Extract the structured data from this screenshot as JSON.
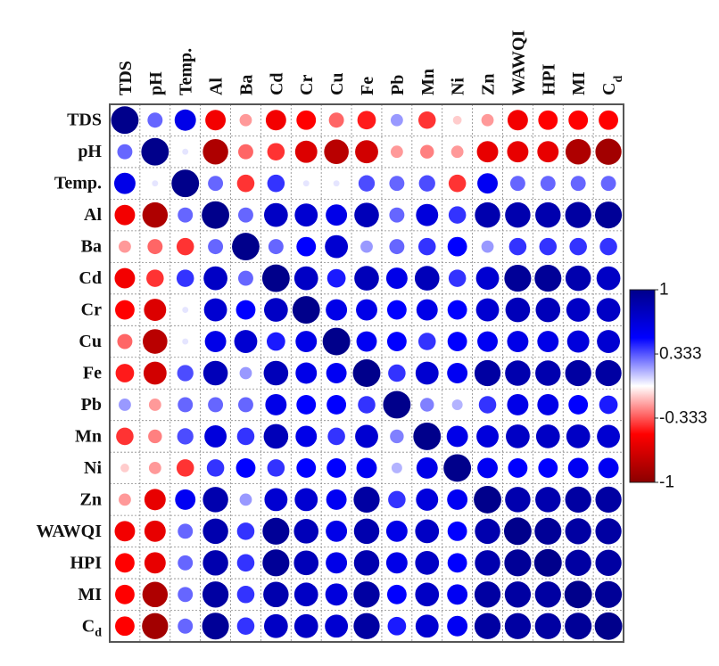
{
  "chart_data": {
    "type": "heatmap",
    "style": "circle-correlogram",
    "variables": [
      "TDS",
      "pH",
      "Temp.",
      "Al",
      "Ba",
      "Cd",
      "Cr",
      "Cu",
      "Fe",
      "Pb",
      "Mn",
      "Ni",
      "Zn",
      "WAWQI",
      "HPI",
      "MI",
      "Cd"
    ],
    "variable_subscripts": [
      null,
      null,
      null,
      null,
      null,
      null,
      null,
      null,
      null,
      null,
      null,
      null,
      null,
      null,
      null,
      null,
      "d"
    ],
    "matrix": [
      [
        1,
        0.3,
        0.6,
        -0.55,
        -0.2,
        -0.55,
        -0.5,
        -0.3,
        -0.45,
        0.2,
        -0.4,
        -0.1,
        -0.2,
        -0.55,
        -0.5,
        -0.5,
        -0.5
      ],
      [
        0.3,
        1,
        0.05,
        -0.85,
        -0.3,
        -0.4,
        -0.65,
        -0.8,
        -0.7,
        -0.2,
        -0.25,
        -0.2,
        -0.6,
        -0.6,
        -0.6,
        -0.85,
        -0.9
      ],
      [
        0.6,
        0.05,
        1,
        0.3,
        -0.4,
        0.4,
        0.05,
        0.05,
        0.35,
        0.3,
        0.35,
        -0.4,
        0.55,
        0.3,
        0.3,
        0.3,
        0.3
      ],
      [
        -0.55,
        -0.85,
        0.3,
        1,
        0.3,
        0.75,
        0.7,
        0.6,
        0.8,
        0.3,
        0.65,
        0.4,
        0.85,
        0.85,
        0.85,
        0.9,
        0.95
      ],
      [
        -0.2,
        -0.3,
        -0.4,
        0.3,
        1,
        0.3,
        0.5,
        0.7,
        0.2,
        0.3,
        0.4,
        0.5,
        0.2,
        0.4,
        0.4,
        0.4,
        0.4
      ],
      [
        -0.55,
        -0.4,
        0.4,
        0.75,
        0.3,
        1,
        0.75,
        0.45,
        0.8,
        0.6,
        0.8,
        0.4,
        0.7,
        0.95,
        0.95,
        0.85,
        0.75
      ],
      [
        -0.5,
        -0.65,
        0.05,
        0.7,
        0.5,
        0.75,
        1,
        0.6,
        0.6,
        0.5,
        0.6,
        0.5,
        0.7,
        0.8,
        0.8,
        0.75,
        0.75
      ],
      [
        -0.3,
        -0.8,
        0.05,
        0.6,
        0.7,
        0.45,
        0.6,
        1,
        0.55,
        0.5,
        0.4,
        0.5,
        0.55,
        0.6,
        0.6,
        0.65,
        0.7
      ],
      [
        -0.45,
        -0.7,
        0.35,
        0.8,
        0.2,
        0.8,
        0.6,
        0.55,
        1,
        0.4,
        0.7,
        0.55,
        0.9,
        0.85,
        0.85,
        0.9,
        0.9
      ],
      [
        0.2,
        -0.2,
        0.3,
        0.3,
        0.3,
        0.6,
        0.5,
        0.5,
        0.4,
        1,
        0.25,
        0.15,
        0.4,
        0.6,
        0.6,
        0.5,
        0.45
      ],
      [
        -0.4,
        -0.25,
        0.35,
        0.65,
        0.4,
        0.8,
        0.6,
        0.4,
        0.7,
        0.25,
        1,
        0.6,
        0.65,
        0.75,
        0.75,
        0.75,
        0.7
      ],
      [
        -0.1,
        -0.2,
        -0.4,
        0.4,
        0.5,
        0.4,
        0.5,
        0.5,
        0.55,
        0.15,
        0.6,
        1,
        0.55,
        0.5,
        0.5,
        0.55,
        0.55
      ],
      [
        -0.2,
        -0.6,
        0.55,
        0.85,
        0.2,
        0.7,
        0.7,
        0.55,
        0.9,
        0.4,
        0.65,
        0.55,
        1,
        0.85,
        0.85,
        0.9,
        0.9
      ],
      [
        -0.55,
        -0.6,
        0.3,
        0.85,
        0.4,
        0.95,
        0.8,
        0.6,
        0.85,
        0.6,
        0.75,
        0.5,
        0.85,
        1,
        0.95,
        0.9,
        0.9
      ],
      [
        -0.5,
        -0.6,
        0.3,
        0.85,
        0.4,
        0.95,
        0.8,
        0.6,
        0.85,
        0.6,
        0.75,
        0.5,
        0.85,
        0.95,
        1,
        0.9,
        0.9
      ],
      [
        -0.5,
        -0.85,
        0.3,
        0.9,
        0.4,
        0.85,
        0.75,
        0.65,
        0.9,
        0.5,
        0.75,
        0.55,
        0.9,
        0.9,
        0.9,
        1,
        0.95
      ],
      [
        -0.5,
        -0.9,
        0.3,
        0.95,
        0.4,
        0.75,
        0.75,
        0.7,
        0.9,
        0.45,
        0.7,
        0.55,
        0.9,
        0.9,
        0.9,
        0.95,
        1
      ]
    ],
    "value_range": [
      -1,
      1
    ],
    "colorbar": {
      "ticks": [
        "1",
        "0.333",
        "-0.333",
        "-1"
      ],
      "stops": [
        "#8b0000",
        "#ff0000",
        "#ffffff",
        "#0000ff",
        "#00008b"
      ]
    },
    "grid": true
  }
}
